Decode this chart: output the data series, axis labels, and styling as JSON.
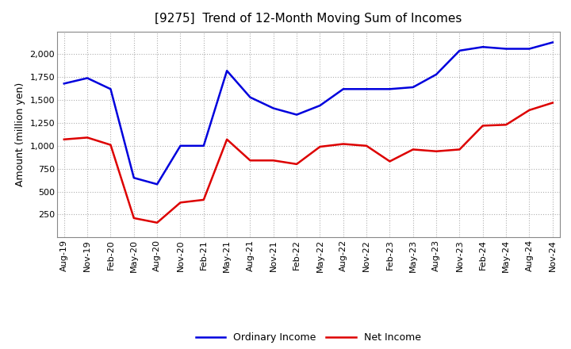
{
  "title": "[9275]  Trend of 12-Month Moving Sum of Incomes",
  "ylabel": "Amount (million yen)",
  "background_color": "#ffffff",
  "grid_color": "#b0b0b0",
  "x_labels": [
    "Aug-19",
    "Nov-19",
    "Feb-20",
    "May-20",
    "Aug-20",
    "Nov-20",
    "Feb-21",
    "May-21",
    "Aug-21",
    "Nov-21",
    "Feb-22",
    "May-22",
    "Aug-22",
    "Nov-22",
    "Feb-23",
    "May-23",
    "Aug-23",
    "Nov-23",
    "Feb-24",
    "May-24",
    "Aug-24",
    "Nov-24"
  ],
  "ordinary_income": [
    1680,
    1740,
    1620,
    650,
    580,
    1000,
    1000,
    1820,
    1530,
    1410,
    1340,
    1440,
    1620,
    1620,
    1620,
    1640,
    1780,
    2040,
    2080,
    2060,
    2060,
    2130
  ],
  "net_income": [
    1070,
    1090,
    1010,
    210,
    160,
    380,
    410,
    1070,
    840,
    840,
    800,
    990,
    1020,
    1000,
    830,
    960,
    940,
    960,
    1220,
    1230,
    1390,
    1470
  ],
  "ordinary_color": "#0000dd",
  "net_color": "#dd0000",
  "ylim": [
    0,
    2250
  ],
  "yticks": [
    250,
    500,
    750,
    1000,
    1250,
    1500,
    1750,
    2000
  ],
  "legend_labels": [
    "Ordinary Income",
    "Net Income"
  ],
  "line_width": 1.8,
  "title_fontsize": 11,
  "axis_fontsize": 8,
  "legend_fontsize": 9
}
